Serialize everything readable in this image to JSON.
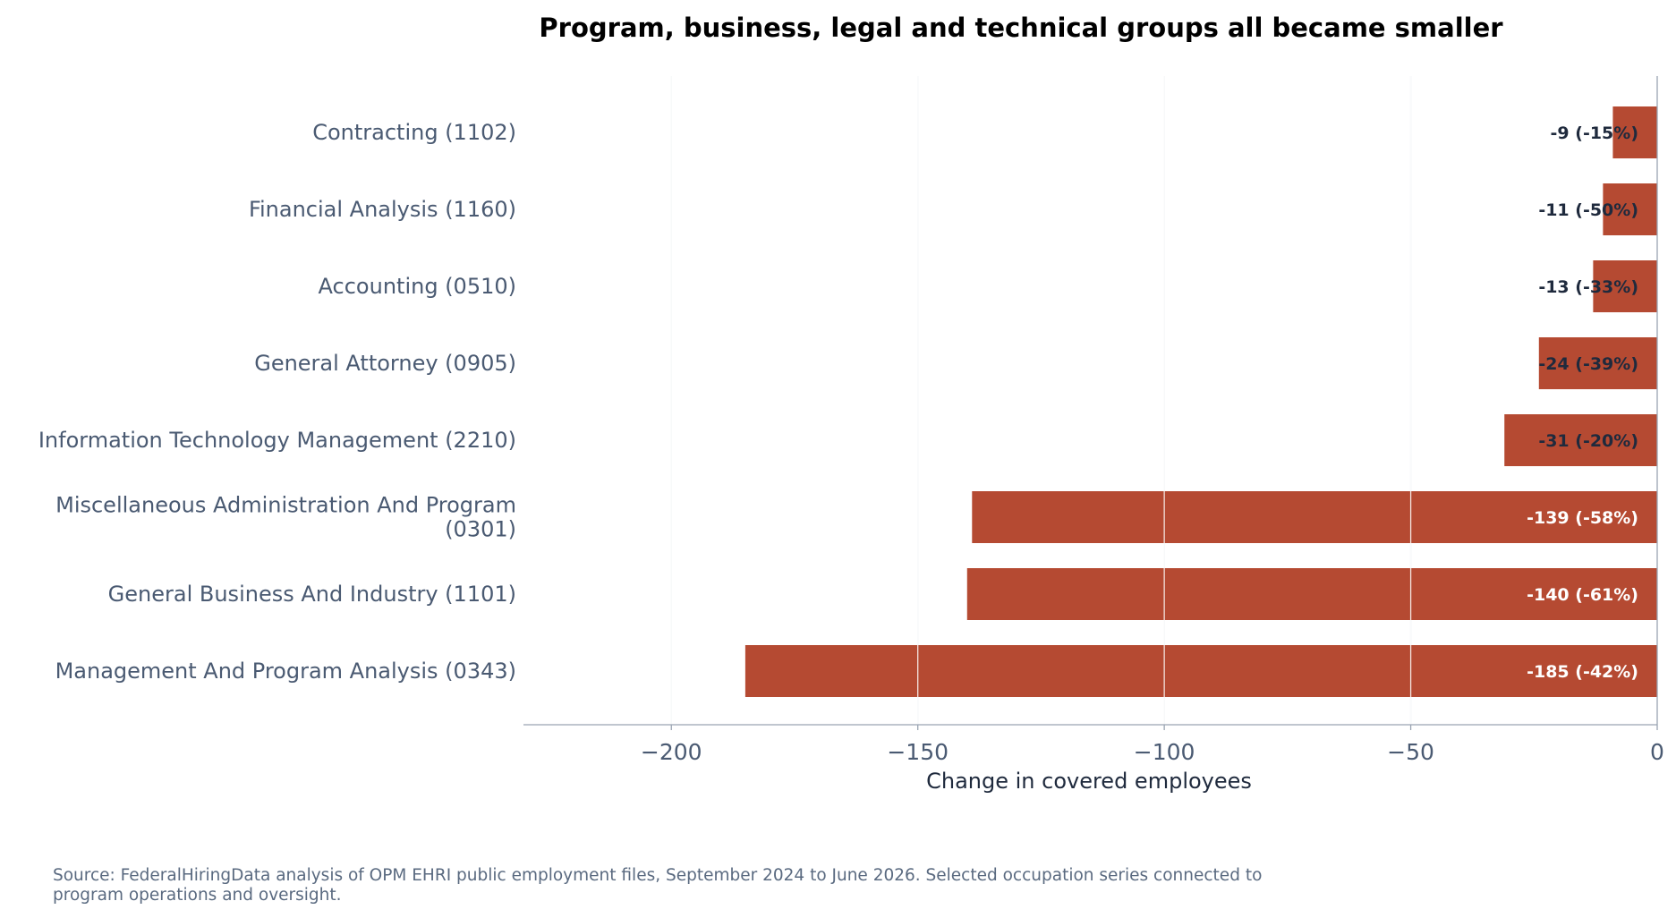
{
  "chart_data": {
    "type": "bar",
    "orientation": "horizontal",
    "title": "Program, business, legal and technical groups all became smaller",
    "xlabel": "Change in covered employees",
    "ylabel": "",
    "xlim": [
      -230,
      0
    ],
    "xticks": [
      -200,
      -150,
      -100,
      -50,
      0
    ],
    "xtick_labels": [
      "−200",
      "−150",
      "−100",
      "−50",
      "0"
    ],
    "grid": "vertical",
    "categories": [
      [
        "Contracting (1102)"
      ],
      [
        "Financial Analysis (1160)"
      ],
      [
        "Accounting (0510)"
      ],
      [
        "General Attorney (0905)"
      ],
      [
        "Information Technology Management (2210)"
      ],
      [
        "Miscellaneous Administration And Program",
        "(0301)"
      ],
      [
        "General Business And Industry (1101)"
      ],
      [
        "Management And Program Analysis (0343)"
      ]
    ],
    "values": [
      -9,
      -11,
      -13,
      -24,
      -31,
      -139,
      -140,
      -185
    ],
    "data_labels": [
      "-9 (-15%)",
      "-11 (-50%)",
      "-13 (-33%)",
      "-24 (-39%)",
      "-31 (-20%)",
      "-139 (-58%)",
      "-140 (-61%)",
      "-185 (-42%)"
    ],
    "colors": {
      "bar": "#b54a32",
      "label_on_bar": "#ffffff",
      "label_off_bar": "#1f2a3d",
      "grid": "#dfe3e8",
      "axis": "#9aa4b2"
    }
  },
  "footer": {
    "source": "Source: FederalHiringData analysis of OPM EHRI public employment files, September 2024 to June 2026. Selected occupation series connected to program operations and oversight."
  }
}
